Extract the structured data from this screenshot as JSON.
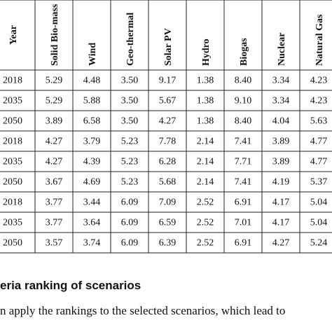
{
  "table": {
    "header": [
      "Year",
      "Solid Bio-mass",
      "Wind",
      "Geo-thermal",
      "Solar PV",
      "Hydro",
      "Biogas",
      "Nuclear",
      "Natural Gas"
    ],
    "rows": [
      [
        "2018",
        "5.29",
        "4.48",
        "3.50",
        "9.17",
        "1.38",
        "8.40",
        "3.34",
        "4.23"
      ],
      [
        "2035",
        "5.29",
        "5.88",
        "3.50",
        "5.67",
        "1.38",
        "9.10",
        "3.34",
        "4.23"
      ],
      [
        "2050",
        "3.89",
        "6.58",
        "3.50",
        "4.27",
        "1.38",
        "8.40",
        "4.04",
        "5.63"
      ],
      [
        "2018",
        "4.27",
        "3.79",
        "5.23",
        "7.78",
        "2.14",
        "7.41",
        "3.89",
        "4.77"
      ],
      [
        "2035",
        "4.27",
        "4.39",
        "5.23",
        "6.28",
        "2.14",
        "7.71",
        "3.89",
        "4.77"
      ],
      [
        "2050",
        "3.67",
        "4.69",
        "5.23",
        "5.68",
        "2.14",
        "7.41",
        "4.19",
        "5.37"
      ],
      [
        "2018",
        "3.77",
        "3.44",
        "6.09",
        "7.09",
        "2.52",
        "6.91",
        "4.17",
        "5.04"
      ],
      [
        "2035",
        "3.77",
        "3.64",
        "6.09",
        "6.59",
        "2.52",
        "7.01",
        "4.17",
        "5.04"
      ],
      [
        "2050",
        "3.57",
        "3.74",
        "6.09",
        "6.39",
        "2.52",
        "6.91",
        "4.27",
        "5.24"
      ]
    ]
  },
  "section_heading": "eria ranking of scenarios",
  "paragraph": "n apply the rankings to the selected scenarios, which lead to"
}
